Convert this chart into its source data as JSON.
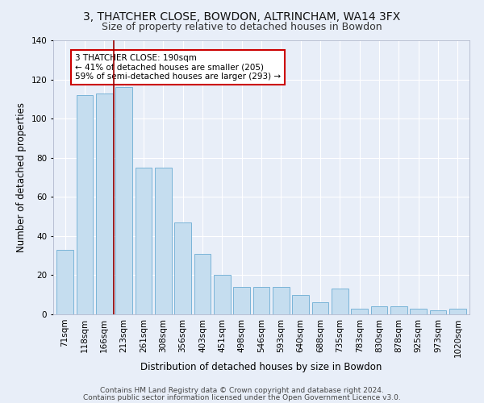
{
  "title1": "3, THATCHER CLOSE, BOWDON, ALTRINCHAM, WA14 3FX",
  "title2": "Size of property relative to detached houses in Bowdon",
  "xlabel": "Distribution of detached houses by size in Bowdon",
  "ylabel": "Number of detached properties",
  "categories": [
    "71sqm",
    "118sqm",
    "166sqm",
    "213sqm",
    "261sqm",
    "308sqm",
    "356sqm",
    "403sqm",
    "451sqm",
    "498sqm",
    "546sqm",
    "593sqm",
    "640sqm",
    "688sqm",
    "735sqm",
    "783sqm",
    "830sqm",
    "878sqm",
    "925sqm",
    "973sqm",
    "1020sqm"
  ],
  "values": [
    33,
    112,
    113,
    116,
    75,
    75,
    47,
    31,
    20,
    14,
    14,
    14,
    10,
    6,
    13,
    3,
    4,
    4,
    3,
    2,
    3
  ],
  "bar_color": "#c5ddef",
  "bar_edge_color": "#7ab4d8",
  "bg_color": "#e8eef8",
  "grid_color": "#ffffff",
  "annotation_text": "3 THATCHER CLOSE: 190sqm\n← 41% of detached houses are smaller (205)\n59% of semi-detached houses are larger (293) →",
  "vline_x": 2.5,
  "vline_color": "#990000",
  "annotation_box_facecolor": "#ffffff",
  "annotation_border_color": "#cc0000",
  "footer1": "Contains HM Land Registry data © Crown copyright and database right 2024.",
  "footer2": "Contains public sector information licensed under the Open Government Licence v3.0.",
  "ylim": [
    0,
    140
  ],
  "title1_fontsize": 10,
  "title2_fontsize": 9,
  "xlabel_fontsize": 8.5,
  "ylabel_fontsize": 8.5,
  "tick_fontsize": 7.5,
  "annotation_fontsize": 7.5,
  "footer_fontsize": 6.5
}
